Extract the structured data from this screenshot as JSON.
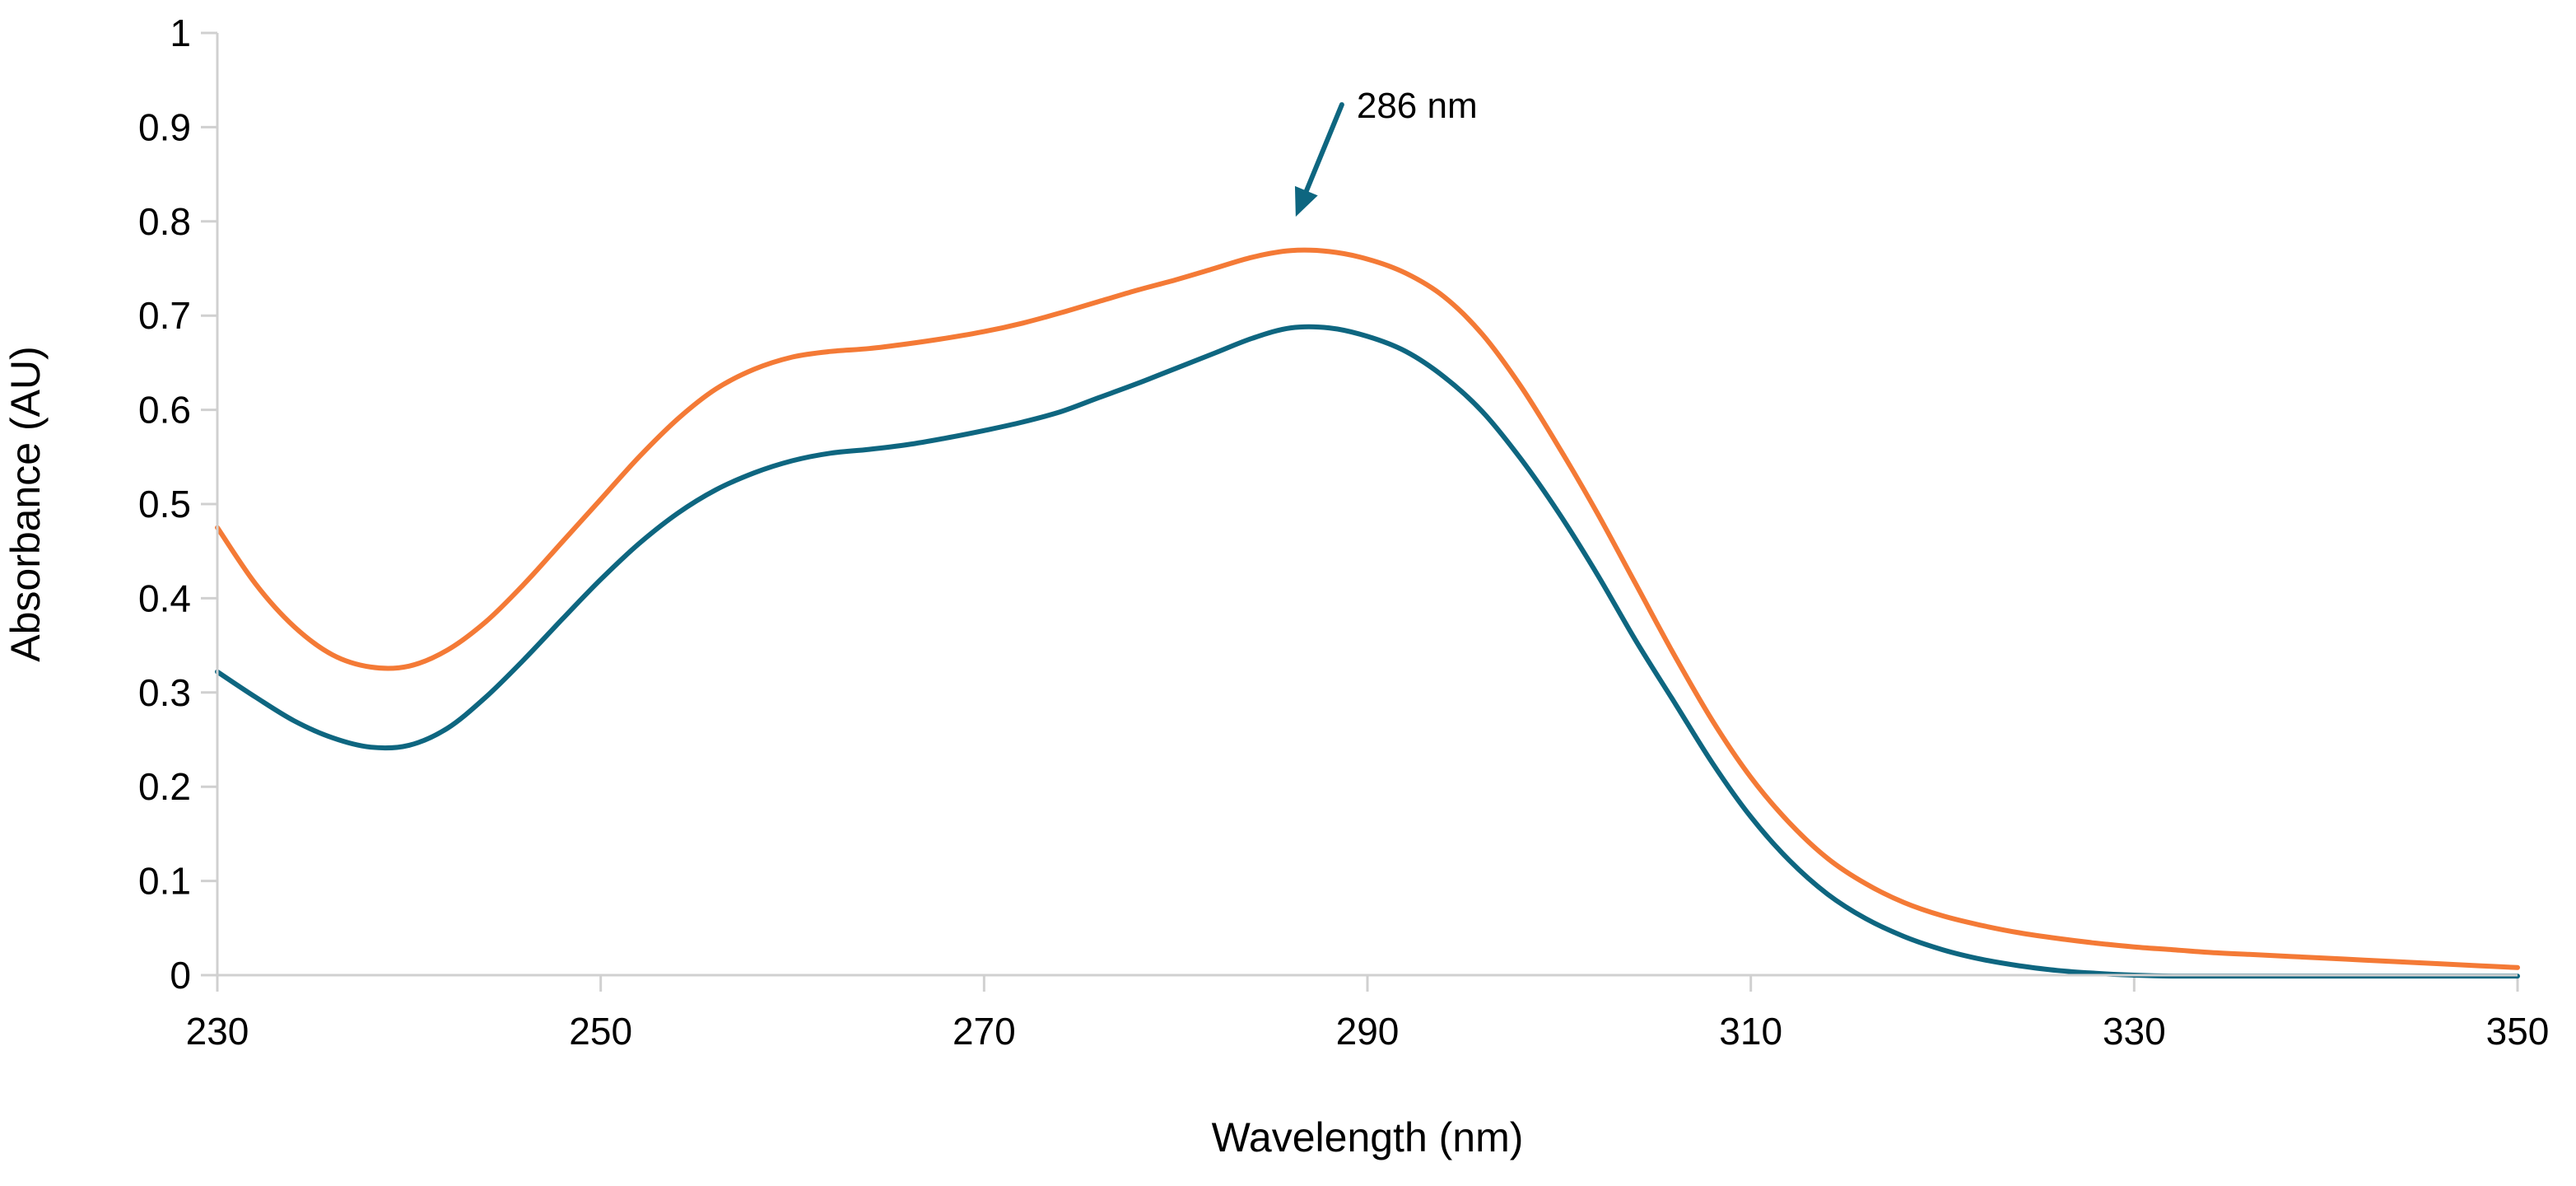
{
  "chart_data": {
    "type": "line",
    "title": "",
    "xlabel": "Wavelength (nm)",
    "ylabel": "Absorbance (AU)",
    "xlim": [
      230,
      350
    ],
    "ylim": [
      0,
      1
    ],
    "x_ticks": [
      230,
      250,
      270,
      290,
      310,
      330,
      350
    ],
    "x_tick_labels": [
      "230",
      "250",
      "270",
      "290",
      "310",
      "330",
      "350"
    ],
    "y_ticks": [
      0,
      0.1,
      0.2,
      0.3,
      0.4,
      0.5,
      0.6,
      0.7,
      0.8,
      0.9,
      1
    ],
    "y_tick_labels": [
      "0",
      "0.1",
      "0.2",
      "0.3",
      "0.4",
      "0.5",
      "0.6",
      "0.7",
      "0.8",
      "0.9",
      "1"
    ],
    "grid": false,
    "legend": "none",
    "series": [
      {
        "name": "orange",
        "color": "#F47A36",
        "x": [
          230,
          232,
          234,
          236,
          238,
          240,
          242,
          244,
          246,
          248,
          250,
          252,
          254,
          256,
          258,
          260,
          262,
          264,
          266,
          268,
          270,
          272,
          274,
          276,
          278,
          280,
          282,
          284,
          286,
          288,
          290,
          292,
          294,
          296,
          298,
          300,
          302,
          304,
          306,
          308,
          310,
          312,
          314,
          316,
          318,
          320,
          322,
          324,
          326,
          328,
          330,
          332,
          334,
          336,
          338,
          340,
          342,
          344,
          346,
          348,
          350
        ],
        "values": [
          0.475,
          0.415,
          0.37,
          0.34,
          0.327,
          0.328,
          0.345,
          0.375,
          0.415,
          0.46,
          0.505,
          0.55,
          0.59,
          0.622,
          0.643,
          0.656,
          0.662,
          0.665,
          0.67,
          0.676,
          0.683,
          0.692,
          0.703,
          0.715,
          0.727,
          0.738,
          0.75,
          0.762,
          0.769,
          0.768,
          0.76,
          0.745,
          0.72,
          0.68,
          0.625,
          0.56,
          0.49,
          0.415,
          0.34,
          0.27,
          0.21,
          0.162,
          0.124,
          0.097,
          0.077,
          0.063,
          0.053,
          0.045,
          0.039,
          0.034,
          0.03,
          0.027,
          0.024,
          0.022,
          0.02,
          0.018,
          0.016,
          0.014,
          0.012,
          0.01,
          0.008
        ]
      },
      {
        "name": "blue",
        "color": "#0E6680",
        "x": [
          230,
          232,
          234,
          236,
          238,
          240,
          242,
          244,
          246,
          248,
          250,
          252,
          254,
          256,
          258,
          260,
          262,
          264,
          266,
          268,
          270,
          272,
          274,
          276,
          278,
          280,
          282,
          284,
          286,
          288,
          290,
          292,
          294,
          296,
          298,
          300,
          302,
          304,
          306,
          308,
          310,
          312,
          314,
          316,
          318,
          320,
          322,
          324,
          326,
          328,
          330,
          332,
          334,
          336,
          338,
          340,
          342,
          344,
          346,
          348,
          350
        ],
        "values": [
          0.322,
          0.295,
          0.27,
          0.252,
          0.242,
          0.244,
          0.262,
          0.295,
          0.335,
          0.378,
          0.42,
          0.458,
          0.49,
          0.515,
          0.533,
          0.546,
          0.554,
          0.558,
          0.563,
          0.57,
          0.578,
          0.587,
          0.598,
          0.613,
          0.628,
          0.644,
          0.66,
          0.676,
          0.687,
          0.687,
          0.678,
          0.662,
          0.635,
          0.598,
          0.548,
          0.49,
          0.425,
          0.355,
          0.29,
          0.225,
          0.168,
          0.122,
          0.086,
          0.06,
          0.041,
          0.027,
          0.017,
          0.01,
          0.005,
          0.002,
          0.0,
          -0.001,
          -0.001,
          -0.001,
          -0.001,
          -0.001,
          -0.001,
          -0.001,
          -0.001,
          -0.001,
          -0.001
        ]
      }
    ],
    "annotations": [
      {
        "text": "286 nm",
        "x": 286,
        "y": 0.805,
        "arrow_color": "#0E6680"
      }
    ]
  }
}
